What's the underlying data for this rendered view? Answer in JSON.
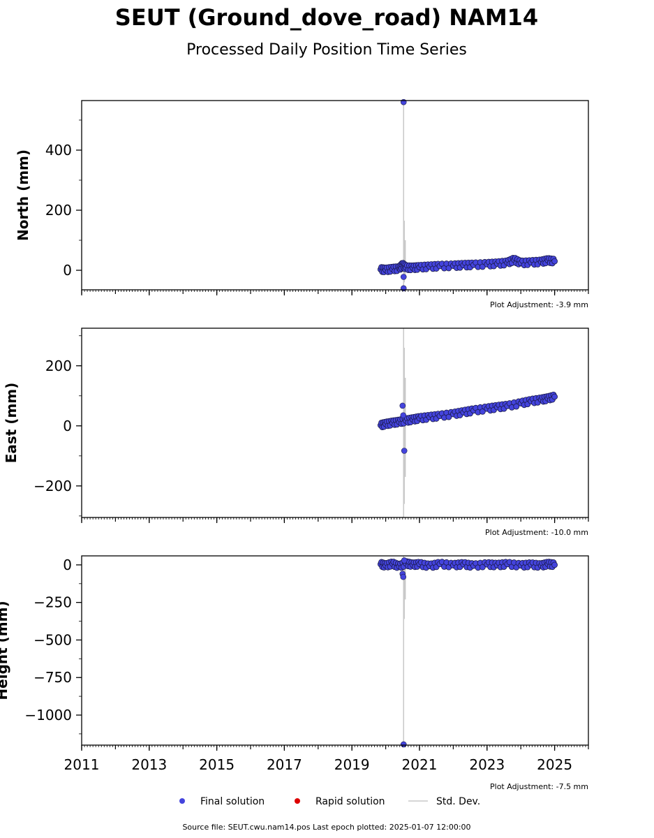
{
  "title": "SEUT (Ground_dove_road) NAM14",
  "subtitle": "Processed Daily Position Time Series",
  "legend": {
    "final": "Final solution",
    "rapid": "Rapid solution",
    "std": "Std. Dev."
  },
  "footer": "Source file: SEUT.cwu.nam14.pos  Last epoch plotted: 2025-01-07 12:00:00",
  "colors": {
    "final": "#4444dd",
    "final_edge": "#1a1a4a",
    "rapid": "#dd0000",
    "std": "#c8c8c8"
  },
  "chart_data": [
    {
      "type": "scatter",
      "ylabel": "North (mm)",
      "adjustment": "Plot Adjustment: -3.9 mm",
      "xlim": [
        2011,
        2026
      ],
      "ylim": [
        -65,
        565
      ],
      "xticks": [
        2011,
        2013,
        2015,
        2017,
        2019,
        2021,
        2023,
        2025
      ],
      "yticks": [
        0,
        200,
        400
      ],
      "ytick_labels": [
        "0",
        "200",
        "400"
      ],
      "series": [
        {
          "name": "Final solution",
          "x": [
            2019.85,
            2020.0,
            2020.2,
            2020.4,
            2020.5,
            2020.6,
            2020.8,
            2021.0,
            2021.3,
            2021.6,
            2022.0,
            2022.3,
            2022.6,
            2023.0,
            2023.3,
            2023.6,
            2023.8,
            2024.0,
            2024.3,
            2024.6,
            2024.8,
            2025.0
          ],
          "y": [
            3,
            1,
            4,
            6,
            18,
            9,
            8,
            10,
            12,
            14,
            15,
            17,
            18,
            20,
            22,
            25,
            35,
            24,
            26,
            28,
            33,
            30
          ]
        }
      ],
      "outliers": {
        "x": [
          2020.53,
          2020.53,
          2020.53
        ],
        "y": [
          560,
          -22,
          -60
        ]
      },
      "std_bars": [
        {
          "x": 2020.53,
          "y0": -65,
          "y1": 565
        },
        {
          "x": 2020.55,
          "y0": -40,
          "y1": 165
        },
        {
          "x": 2020.58,
          "y0": -30,
          "y1": 100
        }
      ]
    },
    {
      "type": "scatter",
      "ylabel": "East (mm)",
      "adjustment": "Plot Adjustment: -10.0 mm",
      "xlim": [
        2011,
        2026
      ],
      "ylim": [
        -305,
        325
      ],
      "xticks": [
        2011,
        2013,
        2015,
        2017,
        2019,
        2021,
        2023,
        2025
      ],
      "yticks": [
        -200,
        0,
        200
      ],
      "ytick_labels": [
        "−200",
        "0",
        "200"
      ],
      "series": [
        {
          "name": "Final solution",
          "x": [
            2019.85,
            2020.0,
            2020.2,
            2020.4,
            2020.6,
            2020.8,
            2021.0,
            2021.3,
            2021.6,
            2022.0,
            2022.3,
            2022.6,
            2023.0,
            2023.3,
            2023.6,
            2024.0,
            2024.3,
            2024.6,
            2024.8,
            2025.0
          ],
          "y": [
            2,
            6,
            10,
            13,
            17,
            21,
            25,
            29,
            33,
            39,
            45,
            51,
            57,
            62,
            66,
            75,
            82,
            87,
            91,
            97
          ]
        }
      ],
      "outliers": {
        "x": [
          2020.5,
          2020.52,
          2020.55
        ],
        "y": [
          67,
          35,
          -83
        ]
      },
      "std_bars": [
        {
          "x": 2020.53,
          "y0": -305,
          "y1": 325
        },
        {
          "x": 2020.55,
          "y0": -260,
          "y1": 260
        },
        {
          "x": 2020.58,
          "y0": -170,
          "y1": 160
        }
      ]
    },
    {
      "type": "scatter",
      "ylabel": "Height (mm)",
      "adjustment": "Plot Adjustment: -7.5 mm",
      "xlim": [
        2011,
        2026
      ],
      "ylim": [
        -1200,
        60
      ],
      "xticks": [
        2011,
        2013,
        2015,
        2017,
        2019,
        2021,
        2023,
        2025
      ],
      "xtick_labels": [
        "2011",
        "2013",
        "2015",
        "2017",
        "2019",
        "2021",
        "2023",
        "2025"
      ],
      "yticks": [
        -1000,
        -750,
        -500,
        -250,
        0
      ],
      "ytick_labels": [
        "−1000",
        "−750",
        "−500",
        "−250",
        "0"
      ],
      "series": [
        {
          "name": "Final solution",
          "x": [
            2019.85,
            2020.0,
            2020.2,
            2020.4,
            2020.6,
            2020.8,
            2021.0,
            2021.3,
            2021.6,
            2022.0,
            2022.3,
            2022.6,
            2023.0,
            2023.3,
            2023.6,
            2024.0,
            2024.3,
            2024.6,
            2024.8,
            2025.0
          ],
          "y": [
            5,
            -5,
            8,
            -10,
            10,
            0,
            5,
            -8,
            6,
            -3,
            4,
            -6,
            3,
            -2,
            5,
            -4,
            2,
            -5,
            6,
            0
          ]
        }
      ],
      "outliers": {
        "x": [
          2020.5,
          2020.52,
          2020.55,
          2020.53
        ],
        "y": [
          -60,
          -80,
          30,
          -1195
        ]
      },
      "std_bars": [
        {
          "x": 2020.53,
          "y0": -1200,
          "y1": 60
        },
        {
          "x": 2020.55,
          "y0": -360,
          "y1": 40
        },
        {
          "x": 2020.58,
          "y0": -230,
          "y1": 20
        }
      ]
    }
  ]
}
